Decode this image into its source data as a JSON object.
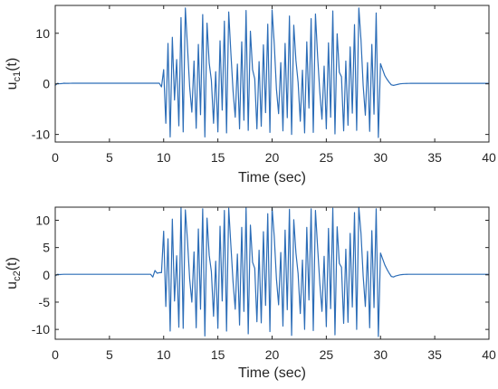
{
  "chart_data": [
    {
      "type": "line",
      "title": "",
      "xlabel": "Time (sec)",
      "ylabel": {
        "prefix": "u",
        "subscript": "c1",
        "suffix": "(t)"
      },
      "xlim": [
        0,
        40
      ],
      "ylim": [
        -11.5,
        15.5
      ],
      "xticks": [
        0,
        5,
        10,
        15,
        20,
        25,
        30,
        35,
        40
      ],
      "yticks": [
        -10,
        0,
        10
      ],
      "grid": false,
      "legend": "none",
      "series": [
        {
          "color": "#2c6db7",
          "x": [
            0.0,
            0.2,
            0.4,
            0.6,
            0.8,
            1.0,
            1.2,
            1.4,
            1.6,
            1.8,
            2.0,
            2.2,
            2.4,
            2.6,
            2.8,
            3.0,
            3.2,
            3.4,
            3.6,
            3.8,
            4.0,
            4.2,
            4.4,
            4.6,
            4.8,
            5.0,
            5.2,
            5.4,
            5.6,
            5.8,
            6.0,
            6.2,
            6.4,
            6.6,
            6.8,
            7.0,
            7.2,
            7.4,
            7.6,
            7.8,
            8.0,
            8.2,
            8.4,
            8.6,
            8.8,
            9.0,
            9.2,
            9.4,
            9.6,
            9.8,
            10.0,
            10.2,
            10.4,
            10.6,
            10.8,
            11.0,
            11.2,
            11.4,
            11.6,
            11.8,
            12.0,
            12.2,
            12.4,
            12.6,
            12.8,
            13.0,
            13.2,
            13.4,
            13.6,
            13.8,
            14.0,
            14.2,
            14.4,
            14.6,
            14.8,
            15.0,
            15.2,
            15.4,
            15.6,
            15.8,
            16.0,
            16.2,
            16.4,
            16.6,
            16.8,
            17.0,
            17.2,
            17.4,
            17.6,
            17.8,
            18.0,
            18.2,
            18.4,
            18.6,
            18.8,
            19.0,
            19.2,
            19.4,
            19.6,
            19.8,
            20.0,
            20.2,
            20.4,
            20.6,
            20.8,
            21.0,
            21.2,
            21.4,
            21.6,
            21.8,
            22.0,
            22.2,
            22.4,
            22.6,
            22.8,
            23.0,
            23.2,
            23.4,
            23.6,
            23.8,
            24.0,
            24.2,
            24.4,
            24.6,
            24.8,
            25.0,
            25.2,
            25.4,
            25.6,
            25.8,
            26.0,
            26.2,
            26.4,
            26.6,
            26.8,
            27.0,
            27.2,
            27.4,
            27.6,
            27.8,
            28.0,
            28.2,
            28.4,
            28.6,
            28.8,
            29.0,
            29.2,
            29.4,
            29.6,
            29.8,
            30.0,
            30.2,
            30.4,
            30.6,
            30.8,
            31.0,
            31.2,
            31.4,
            31.6,
            31.8,
            32.0,
            32.2,
            32.4,
            32.6,
            32.8,
            33.0,
            33.2,
            33.4,
            33.6,
            33.8,
            34.0,
            34.2,
            34.4,
            34.6,
            34.8,
            35.0,
            35.2,
            35.4,
            35.6,
            35.8,
            36.0,
            36.2,
            36.4,
            36.6,
            36.8,
            37.0,
            37.2,
            37.4,
            37.6,
            37.8,
            38.0,
            38.2,
            38.4,
            38.6,
            38.8,
            39.0,
            39.2,
            39.4,
            39.6,
            39.8,
            40.0
          ],
          "y": [
            -0.3,
            0.1,
            0.02,
            0.05,
            0.12,
            0.1,
            0.1,
            0.11,
            0.12,
            0.12,
            0.12,
            0.12,
            0.12,
            0.12,
            0.12,
            0.12,
            0.12,
            0.12,
            0.12,
            0.12,
            0.12,
            0.12,
            0.12,
            0.12,
            0.12,
            0.12,
            0.12,
            0.12,
            0.12,
            0.12,
            0.12,
            0.12,
            0.12,
            0.12,
            0.12,
            0.12,
            0.12,
            0.12,
            0.12,
            0.12,
            0.12,
            0.12,
            0.12,
            0.12,
            0.12,
            0.12,
            0.12,
            0.12,
            0.12,
            -0.6,
            2.8,
            -7.8,
            8.0,
            -10.5,
            9.2,
            -3.2,
            4.8,
            -8.3,
            13.1,
            -9.5,
            15.0,
            7.2,
            -0.7,
            -5.6,
            4.5,
            -8.8,
            7.8,
            -6.1,
            13.7,
            -10.5,
            12.0,
            4.1,
            0.7,
            -7.8,
            2.4,
            -9.5,
            8.5,
            -5.2,
            12.4,
            -9.7,
            14.2,
            6.1,
            -1.4,
            -6.6,
            3.9,
            -8.9,
            8.3,
            -7.2,
            14.5,
            -9.2,
            10.4,
            2.8,
            1.0,
            -8.9,
            4.4,
            -8.4,
            7.7,
            -5.7,
            11.8,
            -9.6,
            14.6,
            7.9,
            -1.0,
            -5.9,
            4.2,
            -9.3,
            8.0,
            -6.7,
            13.4,
            -10.0,
            11.6,
            4.6,
            0.3,
            -7.4,
            2.7,
            -9.7,
            8.3,
            -4.8,
            12.9,
            -9.6,
            13.8,
            5.4,
            -1.6,
            -7.0,
            3.5,
            -8.9,
            8.1,
            -6.6,
            14.4,
            -9.9,
            9.9,
            2.3,
            1.4,
            -9.3,
            4.5,
            -8.2,
            7.3,
            -5.8,
            11.7,
            -9.2,
            15.0,
            8.7,
            -0.3,
            -6.2,
            4.2,
            -9.4,
            7.8,
            -6.0,
            14.0,
            -10.6,
            4.0,
            2.8,
            1.6,
            0.9,
            0.3,
            -0.2,
            -0.3,
            -0.2,
            -0.1,
            0.0,
            0.04,
            0.07,
            0.08,
            0.09,
            0.1,
            0.1,
            0.1,
            0.1,
            0.1,
            0.1,
            0.1,
            0.1,
            0.1,
            0.1,
            0.1,
            0.1,
            0.1,
            0.1,
            0.1,
            0.1,
            0.1,
            0.1,
            0.1,
            0.1,
            0.1,
            0.1,
            0.1,
            0.1,
            0.1,
            0.1,
            0.1,
            0.1,
            0.1,
            0.1,
            0.1,
            0.1,
            0.1,
            0.1,
            0.1,
            0.1,
            0.1
          ]
        }
      ]
    },
    {
      "type": "line",
      "title": "",
      "xlabel": "Time (sec)",
      "ylabel": {
        "prefix": "u",
        "subscript": "c2",
        "suffix": "(t)"
      },
      "xlim": [
        0,
        40
      ],
      "ylim": [
        -11.8,
        12.4
      ],
      "xticks": [
        0,
        5,
        10,
        15,
        20,
        25,
        30,
        35,
        40
      ],
      "yticks": [
        -10,
        -5,
        0,
        5,
        10
      ],
      "grid": false,
      "legend": "none",
      "series": [
        {
          "color": "#2c6db7",
          "x": [
            0.0,
            0.2,
            0.4,
            0.6,
            0.8,
            1.0,
            1.2,
            1.4,
            1.6,
            1.8,
            2.0,
            2.2,
            2.4,
            2.6,
            2.8,
            3.0,
            3.2,
            3.4,
            3.6,
            3.8,
            4.0,
            4.2,
            4.4,
            4.6,
            4.8,
            5.0,
            5.2,
            5.4,
            5.6,
            5.8,
            6.0,
            6.2,
            6.4,
            6.6,
            6.8,
            7.0,
            7.2,
            7.4,
            7.6,
            7.8,
            8.0,
            8.2,
            8.4,
            8.6,
            8.8,
            9.0,
            9.2,
            9.4,
            9.6,
            9.8,
            10.0,
            10.2,
            10.4,
            10.6,
            10.8,
            11.0,
            11.2,
            11.4,
            11.6,
            11.8,
            12.0,
            12.2,
            12.4,
            12.6,
            12.8,
            13.0,
            13.2,
            13.4,
            13.6,
            13.8,
            14.0,
            14.2,
            14.4,
            14.6,
            14.8,
            15.0,
            15.2,
            15.4,
            15.6,
            15.8,
            16.0,
            16.2,
            16.4,
            16.6,
            16.8,
            17.0,
            17.2,
            17.4,
            17.6,
            17.8,
            18.0,
            18.2,
            18.4,
            18.6,
            18.8,
            19.0,
            19.2,
            19.4,
            19.6,
            19.8,
            20.0,
            20.2,
            20.4,
            20.6,
            20.8,
            21.0,
            21.2,
            21.4,
            21.6,
            21.8,
            22.0,
            22.2,
            22.4,
            22.6,
            22.8,
            23.0,
            23.2,
            23.4,
            23.6,
            23.8,
            24.0,
            24.2,
            24.4,
            24.6,
            24.8,
            25.0,
            25.2,
            25.4,
            25.6,
            25.8,
            26.0,
            26.2,
            26.4,
            26.6,
            26.8,
            27.0,
            27.2,
            27.4,
            27.6,
            27.8,
            28.0,
            28.2,
            28.4,
            28.6,
            28.8,
            29.0,
            29.2,
            29.4,
            29.6,
            29.8,
            30.0,
            30.2,
            30.4,
            30.6,
            30.8,
            31.0,
            31.2,
            31.4,
            31.6,
            31.8,
            32.0,
            32.2,
            32.4,
            32.6,
            32.8,
            33.0,
            33.2,
            33.4,
            33.6,
            33.8,
            34.0,
            34.2,
            34.4,
            34.6,
            34.8,
            35.0,
            35.2,
            35.4,
            35.6,
            35.8,
            36.0,
            36.2,
            36.4,
            36.6,
            36.8,
            37.0,
            37.2,
            37.4,
            37.6,
            37.8,
            38.0,
            38.2,
            38.4,
            38.6,
            38.8,
            39.0,
            39.2,
            39.4,
            39.6,
            39.8,
            40.0
          ],
          "y": [
            -0.2,
            0.1,
            0.05,
            0.08,
            0.1,
            0.1,
            0.1,
            0.1,
            0.1,
            0.1,
            0.1,
            0.1,
            0.1,
            0.1,
            0.1,
            0.1,
            0.1,
            0.1,
            0.1,
            0.1,
            0.1,
            0.1,
            0.1,
            0.1,
            0.1,
            0.1,
            0.1,
            0.1,
            0.1,
            0.1,
            0.1,
            0.1,
            0.1,
            0.1,
            0.1,
            0.1,
            0.1,
            0.1,
            0.1,
            0.1,
            0.1,
            0.1,
            0.1,
            0.1,
            0.1,
            -0.4,
            0.8,
            0.3,
            0.4,
            0.4,
            8.0,
            -5.8,
            6.6,
            -10.3,
            10.2,
            -4.8,
            3.5,
            -9.6,
            12.3,
            -9.8,
            11.9,
            6.2,
            -0.8,
            -5.0,
            4.2,
            -9.7,
            8.4,
            -6.3,
            12.1,
            -11.2,
            10.4,
            3.6,
            0.6,
            -7.6,
            2.5,
            -9.8,
            8.9,
            -4.8,
            11.8,
            -10.3,
            12.2,
            5.4,
            -1.3,
            -6.3,
            3.8,
            -9.2,
            8.7,
            -6.7,
            12.3,
            -10.8,
            9.1,
            2.3,
            1.2,
            -8.6,
            4.5,
            -8.8,
            7.9,
            -5.6,
            11.2,
            -10.4,
            12.3,
            7.0,
            -0.7,
            -5.5,
            4.1,
            -9.4,
            8.2,
            -6.4,
            12.0,
            -11.1,
            10.1,
            4.0,
            0.2,
            -7.1,
            2.7,
            -10.0,
            8.7,
            -4.6,
            12.1,
            -10.2,
            11.8,
            5.0,
            -1.5,
            -6.7,
            3.4,
            -9.5,
            8.5,
            -6.2,
            12.2,
            -11.0,
            8.8,
            2.1,
            1.4,
            -8.9,
            4.7,
            -8.7,
            7.6,
            -5.9,
            11.4,
            -10.0,
            12.4,
            7.6,
            -0.2,
            -5.8,
            4.3,
            -9.7,
            8.1,
            -6.0,
            12.1,
            -11.3,
            4.0,
            2.9,
            1.8,
            1.0,
            0.3,
            -0.3,
            -0.4,
            -0.2,
            -0.1,
            0.0,
            0.05,
            0.08,
            0.09,
            0.1,
            0.1,
            0.1,
            0.1,
            0.1,
            0.1,
            0.1,
            0.1,
            0.1,
            0.1,
            0.1,
            0.1,
            0.1,
            0.1,
            0.1,
            0.1,
            0.1,
            0.1,
            0.1,
            0.1,
            0.1,
            0.1,
            0.1,
            0.1,
            0.1,
            0.1,
            0.1,
            0.1,
            0.1,
            0.1,
            0.1,
            0.1,
            0.1,
            0.1,
            0.1,
            0.1,
            0.1,
            0.1
          ]
        }
      ]
    }
  ]
}
